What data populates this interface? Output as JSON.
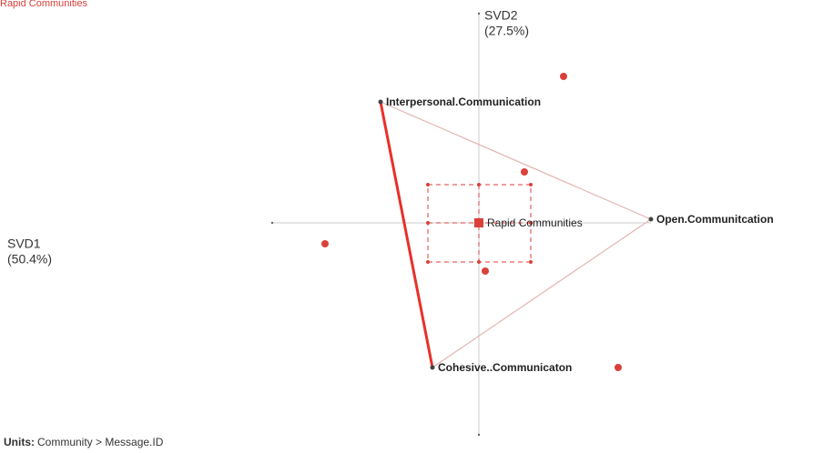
{
  "header": {
    "title": "Rapid Communities"
  },
  "axes": {
    "vertical": {
      "name": "SVD2",
      "share": "(27.5%)"
    },
    "horizontal": {
      "name": "SVD1",
      "share": "(50.4%)"
    }
  },
  "nodes": [
    {
      "label": "Interpersonal.Communication"
    },
    {
      "label": "Open.Communitcation"
    },
    {
      "label": "Cohesive..Communicaton"
    },
    {
      "label": "Rapid Communities"
    }
  ],
  "footer": {
    "label": "Units:",
    "text": "Community > Message.ID"
  }
}
